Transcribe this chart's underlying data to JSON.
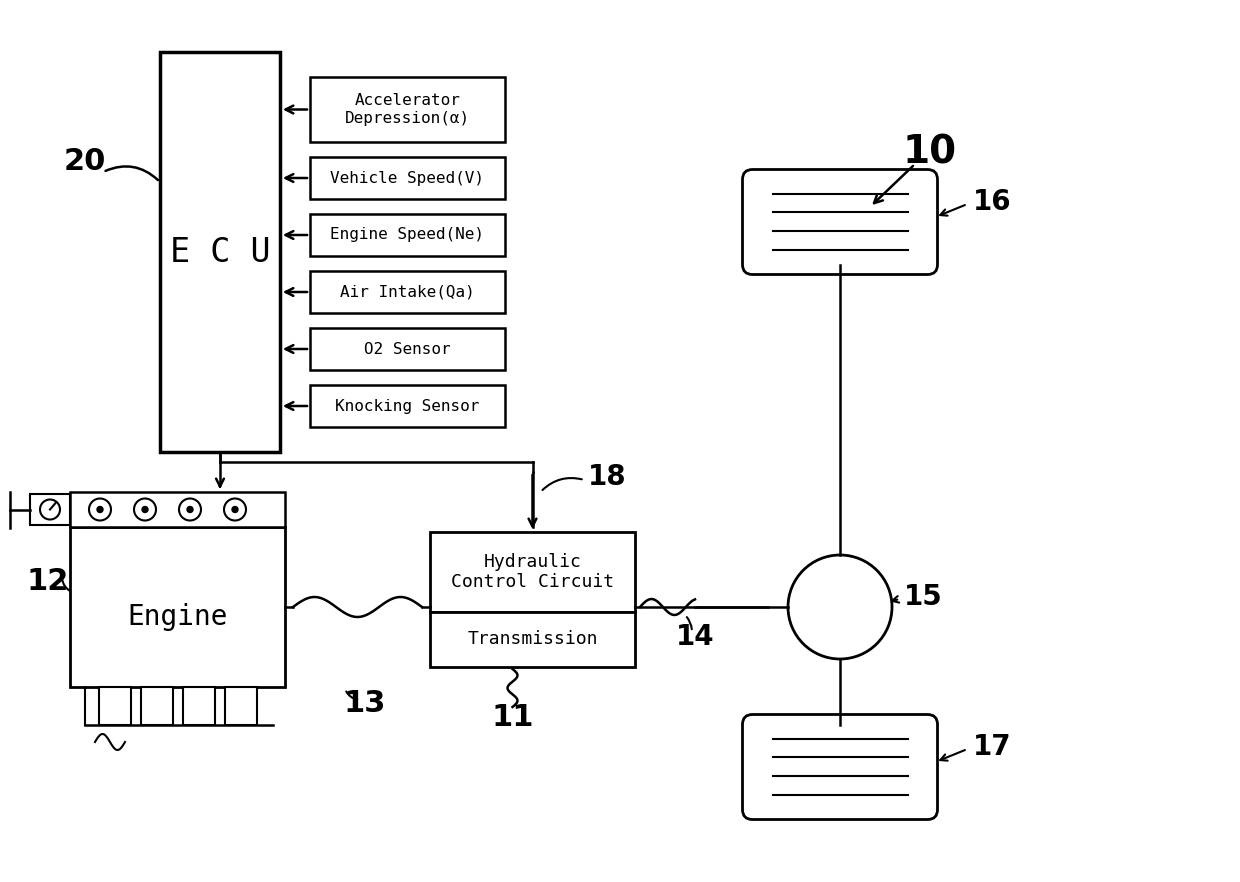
{
  "bg_color": "#ffffff",
  "line_color": "#000000",
  "sensors": [
    "Accelerator\nDepression(α)",
    "Vehicle Speed(V)",
    "Engine Speed(Ne)",
    "Air Intake(Qa)",
    "O2 Sensor",
    "Knocking Sensor"
  ],
  "ecu_label": "E C U",
  "engine_label": "Engine",
  "hcc_label": "Hydraulic\nControl Circuit",
  "trans_label": "Transmission",
  "label_10": "10",
  "label_11": "11",
  "label_12": "12",
  "label_13": "13",
  "label_14": "14",
  "label_15": "15",
  "label_16": "16",
  "label_17": "17",
  "label_18": "18",
  "label_20": "20"
}
